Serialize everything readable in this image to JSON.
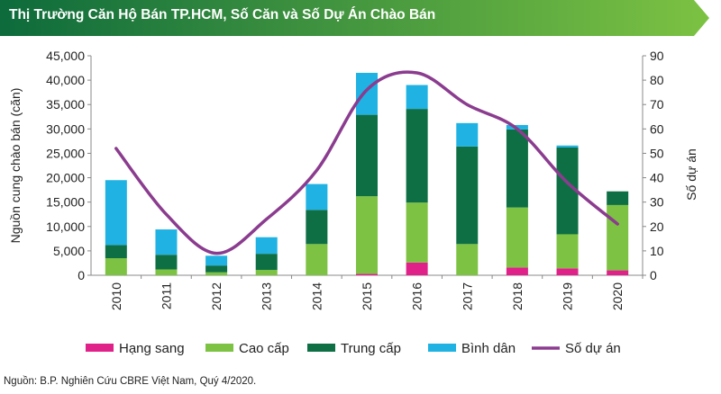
{
  "header": {
    "title": "Thị Trường Căn Hộ Bán TP.HCM, Số Căn và Số Dự Án Chào Bán",
    "color_start": "#0d6b3c",
    "color_end": "#7cc242"
  },
  "chart_data": {
    "type": "bar",
    "stacked": true,
    "categories": [
      "2010",
      "2011",
      "2012",
      "2013",
      "2014",
      "2015",
      "2016",
      "2017",
      "2018",
      "2019",
      "2020"
    ],
    "series": [
      {
        "name": "Hạng sang",
        "color": "#e0218a",
        "values": [
          0,
          0,
          0,
          0,
          0,
          300,
          2600,
          0,
          1600,
          1400,
          1000
        ]
      },
      {
        "name": "Cao cấp",
        "color": "#7dc242",
        "values": [
          3500,
          1200,
          600,
          1100,
          6400,
          15900,
          12300,
          6400,
          12300,
          7000,
          13400
        ]
      },
      {
        "name": "Trung cấp",
        "color": "#0e6f44",
        "values": [
          2700,
          3000,
          1400,
          3300,
          7000,
          16700,
          19200,
          20000,
          16000,
          17800,
          2800
        ]
      },
      {
        "name": "Bình dân",
        "color": "#1fb2e3",
        "values": [
          13300,
          5200,
          2000,
          3400,
          5300,
          8600,
          4900,
          4800,
          900,
          400,
          0
        ]
      }
    ],
    "line": {
      "name": "Số dự án",
      "color": "#8b3c8f",
      "values": [
        52,
        25,
        9,
        23,
        43,
        76,
        83,
        70,
        60,
        38,
        21
      ]
    },
    "ylabel": "Nguồn cung chào bán (căn)",
    "y2label": "Số dự án",
    "ylim": [
      0,
      45000
    ],
    "yticks": [
      0,
      5000,
      10000,
      15000,
      20000,
      25000,
      30000,
      35000,
      40000,
      45000
    ],
    "ytick_labels": [
      "0",
      "5,000",
      "10,000",
      "15,000",
      "20,000",
      "25,000",
      "30,000",
      "35,000",
      "40,000",
      "45,000"
    ],
    "y2lim": [
      0,
      90
    ],
    "y2ticks": [
      0,
      10,
      20,
      30,
      40,
      50,
      60,
      70,
      80,
      90
    ],
    "grid": false,
    "legend_position": "bottom"
  },
  "footer": {
    "source": "Nguồn: B.P. Nghiên Cứu CBRE Việt Nam, Quý 4/2020."
  }
}
